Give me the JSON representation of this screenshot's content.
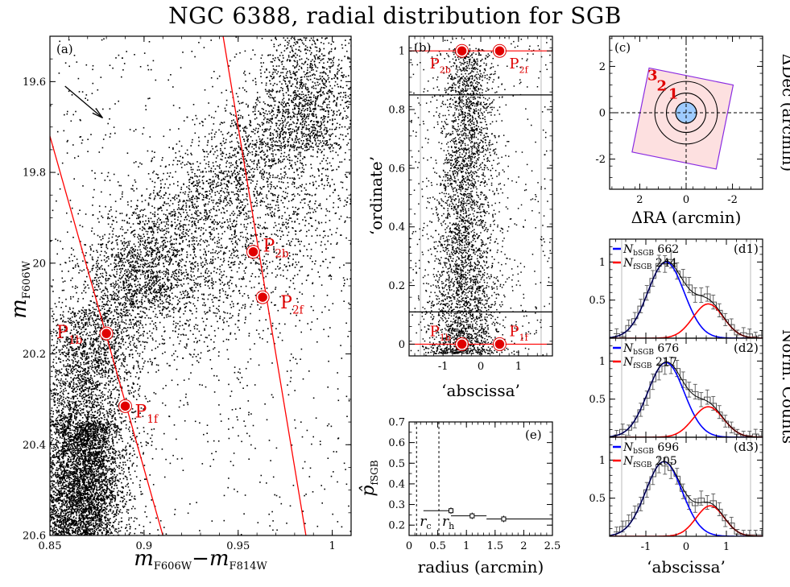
{
  "figure": {
    "title": "NGC 6388, radial distribution for SGB",
    "right_label_top": "ΔDec (arcmin)",
    "right_label_bottom": "Norm. Counts"
  },
  "chart_data": [
    {
      "id": "a",
      "type": "scatter",
      "panel_label": "(a)",
      "xlabel": "m_F606W − m_F814W",
      "ylabel": "m_F606W",
      "xlim": [
        0.85,
        1.01
      ],
      "ylim": [
        20.6,
        19.5
      ],
      "y_inverted": true,
      "x_ticks": [
        "0.85",
        "0.9",
        "0.95",
        "1"
      ],
      "y_ticks": [
        "19.6",
        "19.8",
        "20",
        "20.2",
        "20.4",
        "20.6"
      ],
      "fiducial_lines": [
        {
          "x1": 0.85,
          "y1": 19.72,
          "x2": 0.91,
          "y2": 20.6
        },
        {
          "x1": 0.942,
          "y1": 19.5,
          "x2": 0.986,
          "y2": 20.6
        }
      ],
      "reddening_arrow": {
        "from": [
          0.858,
          19.61
        ],
        "to": [
          0.878,
          19.68
        ]
      },
      "points": [
        {
          "label": "P",
          "sub": "1b",
          "x": 0.88,
          "y": 20.155
        },
        {
          "label": "P",
          "sub": "1f",
          "x": 0.89,
          "y": 20.315
        },
        {
          "label": "P",
          "sub": "2b",
          "x": 0.958,
          "y": 19.975
        },
        {
          "label": "P",
          "sub": "2f",
          "x": 0.963,
          "y": 20.075
        }
      ]
    },
    {
      "id": "b",
      "type": "scatter",
      "panel_label": "(b)",
      "xlabel": "‘abscissa’",
      "ylabel": "‘ordinate’",
      "xlim": [
        -1.9,
        1.9
      ],
      "ylim": [
        -0.04,
        1.05
      ],
      "x_ticks": [
        "-1",
        "0",
        "1"
      ],
      "y_ticks": [
        "0",
        "0.2",
        "0.4",
        "0.6",
        "0.8",
        "1"
      ],
      "hlines": [
        0.0,
        0.11,
        0.85,
        1.0
      ],
      "points": [
        {
          "label": "P",
          "sub": "1b",
          "x": -0.5,
          "y": 0.0
        },
        {
          "label": "P",
          "sub": "1f",
          "x": 0.5,
          "y": 0.0
        },
        {
          "label": "P",
          "sub": "2b",
          "x": -0.5,
          "y": 1.0
        },
        {
          "label": "P",
          "sub": "2f",
          "x": 0.5,
          "y": 1.0
        }
      ]
    },
    {
      "id": "c",
      "type": "scatter",
      "panel_label": "(c)",
      "xlabel": "ΔRA (arcmin)",
      "ylabel": "ΔDec (arcmin)",
      "xlim": [
        3.3,
        -3.3
      ],
      "ylim": [
        -3.3,
        3.3
      ],
      "x_ticks": [
        "2",
        "0",
        "-2"
      ],
      "y_ticks": [
        "-2",
        "0",
        "2"
      ],
      "rings": [
        {
          "label": "1",
          "r": 0.45
        },
        {
          "label": "2",
          "r": 0.85
        },
        {
          "label": "3",
          "r": 1.35
        }
      ],
      "colors": {
        "field": "#fde0e0",
        "field_edge": "#8a2be2",
        "core": "#9ecbff"
      }
    },
    {
      "id": "e",
      "type": "scatter",
      "panel_label": "(e)",
      "xlabel": "radius (arcmin)",
      "ylabel": "p̂_fSGB",
      "xlim": [
        0,
        2.5
      ],
      "ylim": [
        0.15,
        0.7
      ],
      "x_ticks": [
        "0",
        "0.5",
        "1",
        "1.5",
        "2",
        "2.5"
      ],
      "y_ticks": [
        "0.2",
        "0.3",
        "0.4",
        "0.5",
        "0.6",
        "0.7"
      ],
      "vlines": [
        {
          "label": "r",
          "sub": "c",
          "x": 0.13
        },
        {
          "label": "r",
          "sub": "h",
          "x": 0.52
        }
      ],
      "points": [
        {
          "x": 0.73,
          "y": 0.27,
          "xerr": [
            0.25,
            0.73
          ]
        },
        {
          "x": 1.1,
          "y": 0.245,
          "xerr": [
            0.73,
            1.35
          ]
        },
        {
          "x": 1.65,
          "y": 0.23,
          "xerr": [
            1.35,
            2.5
          ]
        }
      ]
    },
    {
      "id": "d1",
      "type": "line",
      "panel_label": "(d1)",
      "xlim": [
        -1.9,
        1.9
      ],
      "ylim": [
        0,
        1.3
      ],
      "x_ticks": [
        "-1",
        "0",
        "1"
      ],
      "y_ticks": [
        "0.5",
        "1"
      ],
      "legend": [
        {
          "name": "N_bSGB",
          "value": "662",
          "color": "#0000ff"
        },
        {
          "name": "N_fSGB",
          "value": "244",
          "color": "#ff0000"
        }
      ],
      "bgauss": {
        "amp": 1.0,
        "mu": -0.5,
        "sigma": 0.45
      },
      "fgauss": {
        "amp": 0.45,
        "mu": 0.55,
        "sigma": 0.38
      }
    },
    {
      "id": "d2",
      "type": "line",
      "panel_label": "(d2)",
      "xlim": [
        -1.9,
        1.9
      ],
      "ylim": [
        0,
        1.3
      ],
      "x_ticks": [
        "-1",
        "0",
        "1"
      ],
      "y_ticks": [
        "0.5",
        "1"
      ],
      "legend": [
        {
          "name": "N_bSGB",
          "value": "676",
          "color": "#0000ff"
        },
        {
          "name": "N_fSGB",
          "value": "217",
          "color": "#ff0000"
        }
      ],
      "bgauss": {
        "amp": 0.98,
        "mu": -0.5,
        "sigma": 0.45
      },
      "fgauss": {
        "amp": 0.4,
        "mu": 0.55,
        "sigma": 0.38
      }
    },
    {
      "id": "d3",
      "type": "line",
      "panel_label": "(d3)",
      "xlabel": "‘abscissa’",
      "xlim": [
        -1.9,
        1.9
      ],
      "ylim": [
        0,
        1.3
      ],
      "x_ticks": [
        "-1",
        "0",
        "1"
      ],
      "y_ticks": [
        "0.5",
        "1"
      ],
      "legend": [
        {
          "name": "N_bSGB",
          "value": "696",
          "color": "#0000ff"
        },
        {
          "name": "N_fSGB",
          "value": "205",
          "color": "#ff0000"
        }
      ],
      "bgauss": {
        "amp": 0.98,
        "mu": -0.55,
        "sigma": 0.45
      },
      "fgauss": {
        "amp": 0.4,
        "mu": 0.6,
        "sigma": 0.35
      }
    }
  ]
}
